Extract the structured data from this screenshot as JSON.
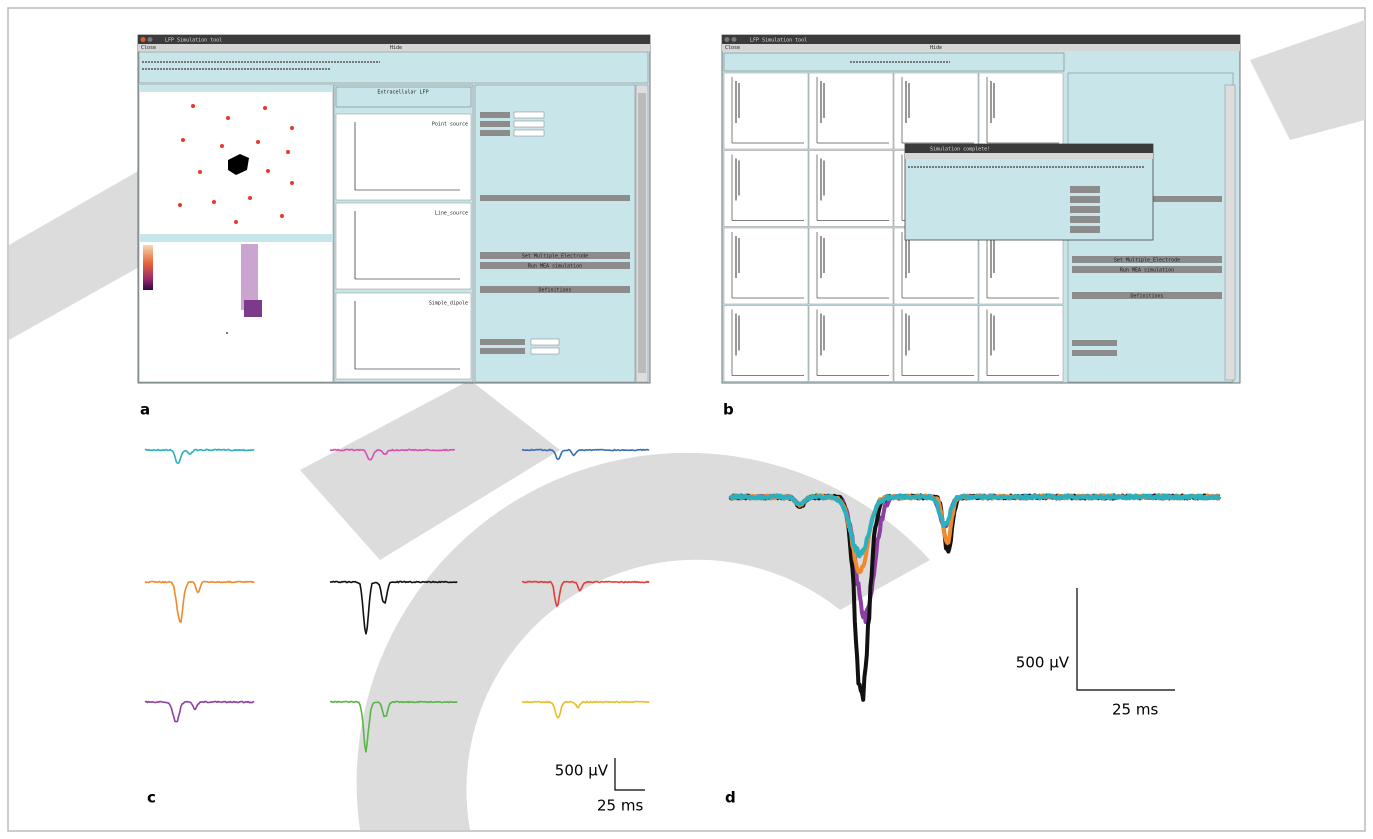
{
  "figure": {
    "panel_labels": [
      "a",
      "b",
      "c",
      "d"
    ],
    "a": {
      "window_title": "LFP Simulation tool",
      "menu": [
        "Close",
        "Hide"
      ],
      "lfp_title": "Extracellular LFP",
      "plot_labels": [
        "Point source",
        "Line_source",
        "Simple_dipole"
      ],
      "buttons": [
        "Set Multiple_Electrode",
        "Run MEA simulation",
        "Definitions"
      ]
    },
    "b": {
      "window_title": "LFP Simulation tool",
      "menu": [
        "Close",
        "Hide"
      ],
      "popup_title": "Simulation complete!",
      "buttons": [
        "Set Multiple_Electrode",
        "Run MEA simulation",
        "Definitions"
      ]
    },
    "c": {
      "scale_y": "500 µV",
      "scale_x": "25 ms"
    },
    "d": {
      "scale_y": "500 µV",
      "scale_x": "25 ms"
    }
  }
}
